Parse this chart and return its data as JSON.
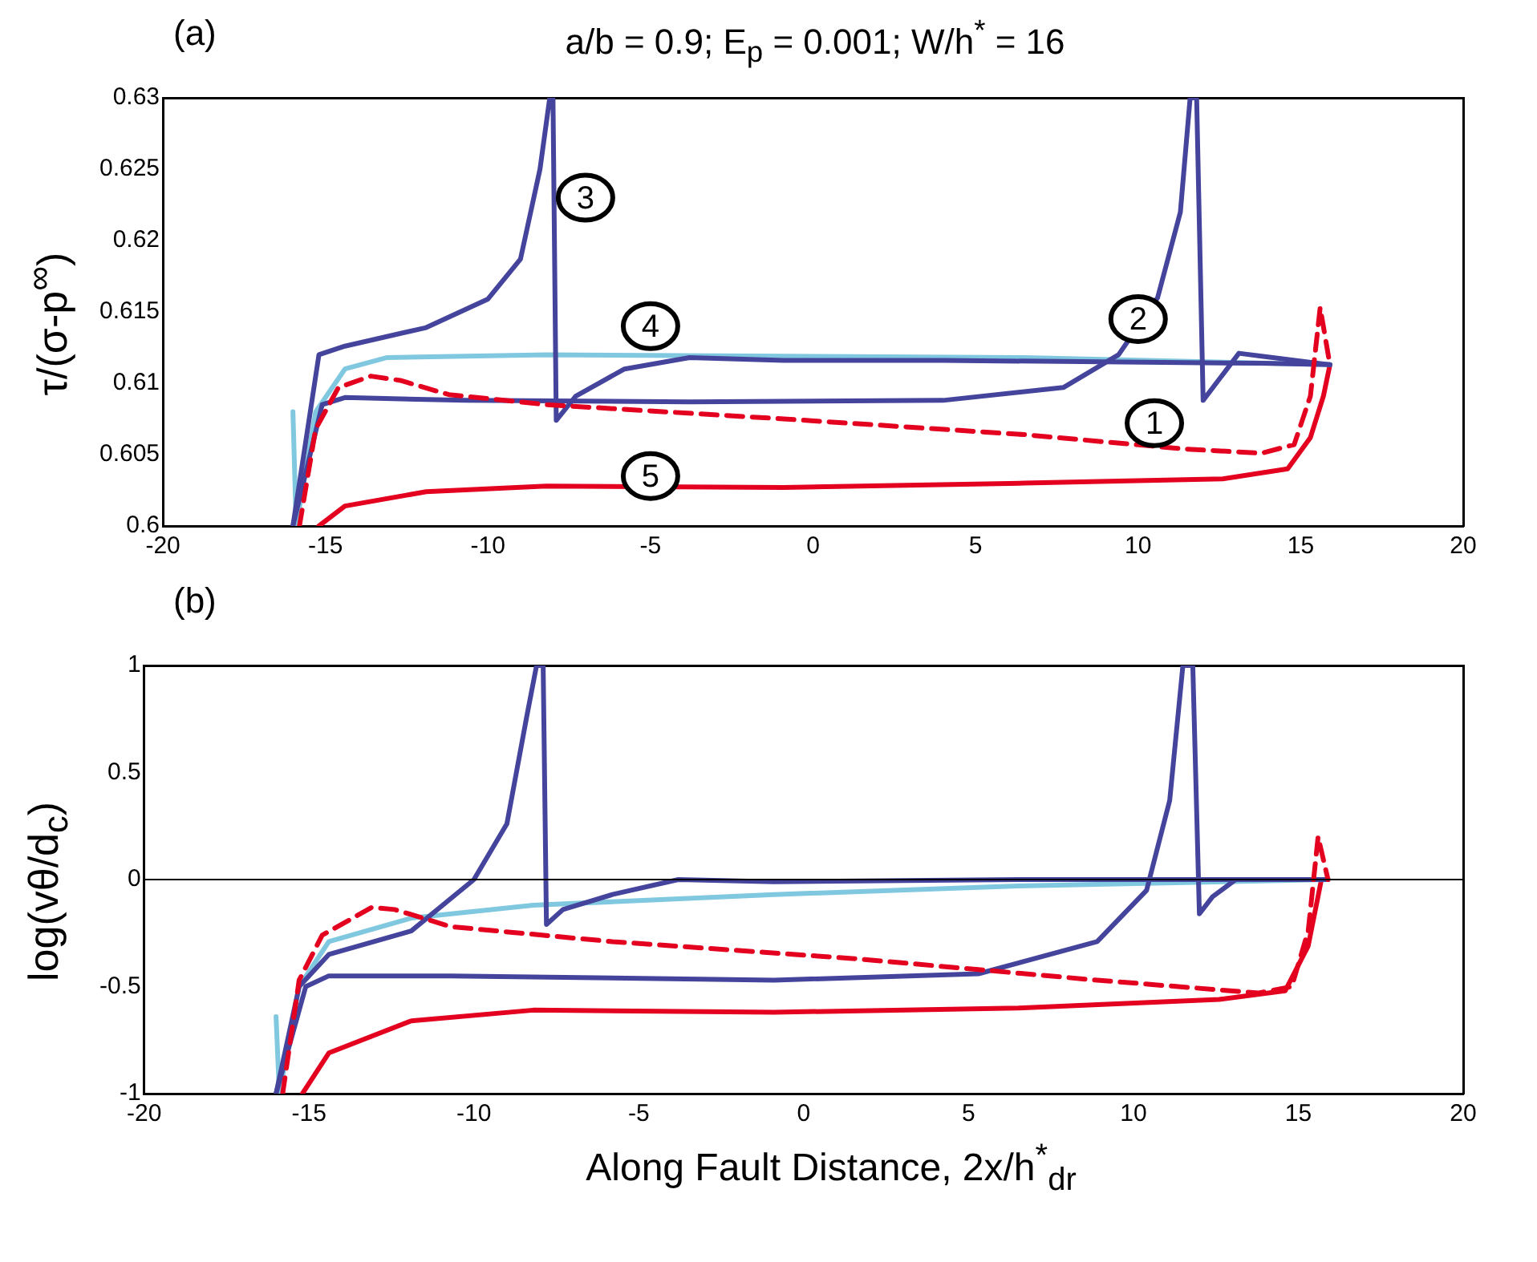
{
  "chart_data": [
    {
      "type": "line",
      "title": "(a)",
      "subtitle": "a/b = 0.9;  E$_{p}$ = 0.001; W/h$^{*}$ = 16",
      "ylabel": "τ/(σ-p$^{∞}$)",
      "xlim": [
        -20,
        20
      ],
      "xticks": [
        -20,
        -15,
        -10,
        -5,
        0,
        5,
        10,
        15,
        20
      ],
      "ylim": [
        0.6,
        0.63
      ],
      "yticks": [
        0.6,
        0.605,
        0.61,
        0.615,
        0.62,
        0.625,
        0.63
      ],
      "grid": false,
      "legend": false,
      "series": [
        {
          "color": "#e4001f",
          "line_style": "dashed",
          "x": [
            -15.8,
            -15.3,
            -14.6,
            -13.6,
            -12.7,
            -11.2,
            -8.2,
            -0.9,
            6.5,
            11.4,
            13.8,
            14.8,
            15.3,
            15.6,
            15.9
          ],
          "values": [
            0.6,
            0.6068,
            0.6097,
            0.6105,
            0.6102,
            0.6092,
            0.6085,
            0.6075,
            0.6064,
            0.6054,
            0.6051,
            0.6057,
            0.6091,
            0.6153,
            0.6113
          ]
        },
        {
          "color": "#45449c",
          "line_style": "solid",
          "x": [
            -16,
            -15.1,
            -14.4,
            -10.7,
            -3.8,
            4.0,
            7.7,
            9.4,
            10.6,
            11.3,
            11.6,
            11.8,
            12.0,
            12.4,
            13.1,
            13.8,
            15.9
          ],
          "values": [
            0.6,
            0.6085,
            0.609,
            0.6088,
            0.6087,
            0.6088,
            0.6097,
            0.612,
            0.616,
            0.622,
            0.63,
            0.63,
            0.6088,
            0.61,
            0.6121,
            0.6119,
            0.6113
          ]
        },
        {
          "color": "#45449c",
          "line_style": "solid",
          "x": [
            -16,
            -15.2,
            -14.4,
            -11.9,
            -10,
            -9,
            -8.4,
            -8.1,
            -8.0,
            -7.9,
            -7.3,
            -5.8,
            -3.8,
            -0.9,
            4.0,
            8.9,
            13.8,
            15.9
          ],
          "values": [
            0.6,
            0.612,
            0.6126,
            0.6139,
            0.6159,
            0.6187,
            0.625,
            0.63,
            0.63,
            0.6074,
            0.6091,
            0.611,
            0.6118,
            0.6116,
            0.6116,
            0.6115,
            0.6114,
            0.6113
          ]
        },
        {
          "color": "#80c8df",
          "line_style": "solid",
          "x": [
            -16,
            -15.9,
            -15.3,
            -14.4,
            -13.1,
            -8.2,
            -0.9,
            6.5,
            15.9
          ],
          "values": [
            0.608,
            0.6,
            0.608,
            0.611,
            0.6118,
            0.612,
            0.6119,
            0.6118,
            0.6113
          ]
        },
        {
          "color": "#e4001f",
          "line_style": "solid",
          "x": [
            -15.2,
            -14.4,
            -11.9,
            -8.2,
            -0.9,
            6.5,
            12.6,
            14.6,
            15.3,
            15.7,
            15.9
          ],
          "values": [
            0.6,
            0.6014,
            0.6024,
            0.6028,
            0.6027,
            0.603,
            0.6033,
            0.604,
            0.6062,
            0.6091,
            0.6113
          ]
        }
      ],
      "annotations": [
        {
          "text": "1",
          "x": 10.5,
          "y": 0.6072
        },
        {
          "text": "2",
          "x": 10,
          "y": 0.6145
        },
        {
          "text": "3",
          "x": -7,
          "y": 0.623
        },
        {
          "text": "4",
          "x": -5,
          "y": 0.614
        },
        {
          "text": "5",
          "x": -5,
          "y": 0.6035
        }
      ]
    },
    {
      "type": "line",
      "title": "(b)",
      "xlabel": "Along Fault Distance, 2x/h$^{*}$$_{dr}$",
      "ylabel": "log(vθ/d$_{c}$)",
      "xlim": [
        -20,
        20
      ],
      "xticks": [
        -20,
        -15,
        -10,
        -5,
        0,
        5,
        10,
        15,
        20
      ],
      "ylim": [
        -1,
        1
      ],
      "yticks": [
        -1,
        -0.5,
        0,
        0.5,
        1
      ],
      "grid": false,
      "legend": false,
      "ref_lines": [
        {
          "axis": "y",
          "value": 0,
          "color": "#000000"
        }
      ],
      "series": [
        {
          "color": "#e4001f",
          "line_style": "dashed",
          "x": [
            -15.8,
            -15.3,
            -14.6,
            -13.1,
            -12.4,
            -10.7,
            -5.8,
            1.6,
            8.9,
            13.8,
            14.8,
            15.3,
            15.6,
            15.9
          ],
          "values": [
            -1,
            -0.47,
            -0.26,
            -0.13,
            -0.14,
            -0.22,
            -0.29,
            -0.37,
            -0.47,
            -0.53,
            -0.5,
            -0.24,
            0.2,
            0
          ]
        },
        {
          "color": "#45449c",
          "line_style": "solid",
          "x": [
            -16,
            -15.1,
            -14.4,
            -10.7,
            -0.9,
            5.3,
            8.9,
            10.4,
            11.1,
            11.5,
            11.8,
            12.0,
            12.4,
            13.1,
            15.9
          ],
          "values": [
            -1,
            -0.5,
            -0.45,
            -0.45,
            -0.47,
            -0.44,
            -0.29,
            -0.05,
            0.37,
            1,
            1,
            -0.16,
            -0.08,
            0,
            0
          ]
        },
        {
          "color": "#45449c",
          "line_style": "solid",
          "x": [
            -16,
            -15.3,
            -14.4,
            -11.9,
            -10,
            -9,
            -8.4,
            -8.1,
            -7.9,
            -7.8,
            -7.3,
            -5.8,
            -3.8,
            -0.9,
            6.5,
            15.9
          ],
          "values": [
            -1,
            -0.5,
            -0.35,
            -0.24,
            0,
            0.26,
            0.76,
            1,
            1,
            -0.21,
            -0.14,
            -0.07,
            0,
            -0.01,
            0,
            0
          ]
        },
        {
          "color": "#80c8df",
          "line_style": "solid",
          "x": [
            -16,
            -15.9,
            -15.3,
            -14.4,
            -11.9,
            -8.2,
            -0.9,
            6.5,
            15.9
          ],
          "values": [
            -0.64,
            -1,
            -0.5,
            -0.29,
            -0.18,
            -0.12,
            -0.07,
            -0.03,
            0
          ]
        },
        {
          "color": "#e4001f",
          "line_style": "solid",
          "x": [
            -15.2,
            -14.4,
            -11.9,
            -8.2,
            -0.9,
            6.5,
            12.6,
            14.6,
            15.3,
            15.7
          ],
          "values": [
            -1,
            -0.81,
            -0.66,
            -0.61,
            -0.62,
            -0.6,
            -0.56,
            -0.52,
            -0.31,
            0
          ]
        }
      ]
    }
  ]
}
